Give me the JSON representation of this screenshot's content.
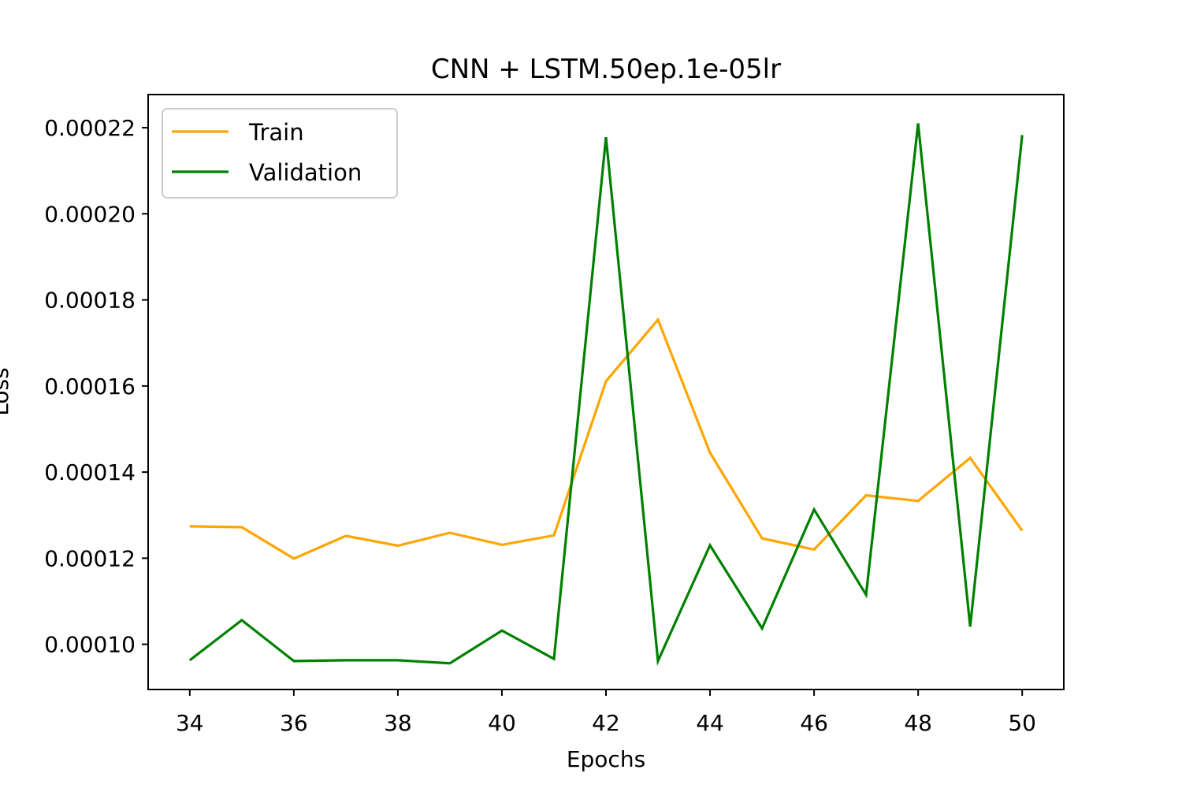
{
  "chart_data": {
    "type": "line",
    "title": "CNN + LSTM.50ep.1e-05lr",
    "xlabel": "Epochs",
    "ylabel": "Loss",
    "x": [
      34,
      35,
      36,
      37,
      38,
      39,
      40,
      41,
      42,
      43,
      44,
      45,
      46,
      47,
      48,
      49,
      50
    ],
    "series": [
      {
        "name": "Train",
        "color": "#ffa500",
        "values": [
          0.0001274,
          0.0001272,
          0.0001199,
          0.0001252,
          0.0001229,
          0.0001259,
          0.0001231,
          0.0001253,
          0.0001611,
          0.0001754,
          0.0001445,
          0.0001246,
          0.000122,
          0.0001346,
          0.0001333,
          0.0001433,
          0.0001264
        ]
      },
      {
        "name": "Validation",
        "color": "#008000",
        "values": [
          9.63e-05,
          0.0001056,
          9.61e-05,
          9.63e-05,
          9.63e-05,
          9.56e-05,
          0.0001032,
          9.66e-05,
          0.0002178,
          9.61e-05,
          0.000123,
          0.0001037,
          0.0001313,
          0.0001115,
          0.000221,
          0.0001041,
          0.0002183
        ]
      }
    ],
    "xlim": [
      33.2,
      50.8
    ],
    "ylim": [
      8.95e-05,
      0.0002277
    ],
    "xticks": [
      34,
      36,
      38,
      40,
      42,
      44,
      46,
      48,
      50
    ],
    "xtick_labels": [
      "34",
      "36",
      "38",
      "40",
      "42",
      "44",
      "46",
      "48",
      "50"
    ],
    "yticks": [
      0.0001,
      0.00012,
      0.00014,
      0.00016,
      0.00018,
      0.0002,
      0.00022
    ],
    "ytick_labels": [
      "0.00010",
      "0.00012",
      "0.00014",
      "0.00016",
      "0.00018",
      "0.00020",
      "0.00022"
    ],
    "legend": "upper left",
    "grid": false
  }
}
